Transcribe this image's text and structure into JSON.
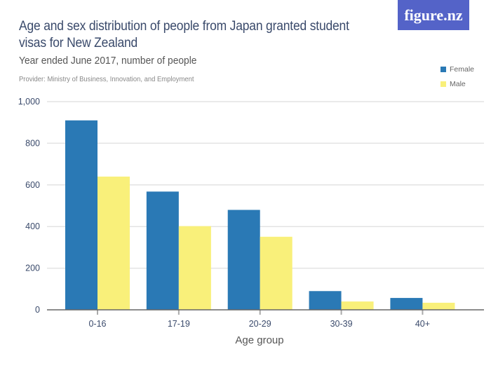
{
  "header": {
    "title": "Age and sex distribution of people from Japan granted student visas for New Zealand",
    "subtitle": "Year ended June 2017, number of people",
    "provider": "Provider: Ministry of Business, Innovation, and Employment",
    "logo": "figure.nz",
    "logo_color": "#5463c8"
  },
  "chart_data": {
    "type": "bar",
    "title": "Age and sex distribution of people from Japan granted student visas for New Zealand",
    "subtitle": "Year ended June 2017, number of people",
    "xlabel": "Age group",
    "ylabel": "",
    "categories": [
      "0-16",
      "17-19",
      "20-29",
      "30-39",
      "40+"
    ],
    "series": [
      {
        "name": "Female",
        "color": "#2a79b5",
        "values": [
          910,
          568,
          480,
          90,
          57
        ]
      },
      {
        "name": "Male",
        "color": "#f9f07a",
        "values": [
          640,
          402,
          351,
          40,
          34
        ]
      }
    ],
    "ylim": [
      0,
      1000
    ],
    "yticks": [
      0,
      200,
      400,
      600,
      800,
      1000
    ],
    "ytick_labels": [
      "0",
      "200",
      "400",
      "600",
      "800",
      "1,000"
    ],
    "grid": true,
    "legend": "top-right"
  }
}
